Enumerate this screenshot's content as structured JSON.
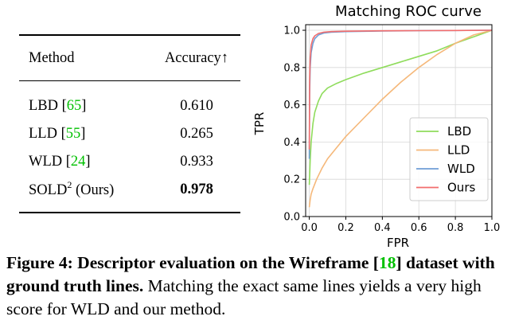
{
  "table": {
    "headers": [
      "Method",
      "Accuracy↑"
    ],
    "rows": [
      {
        "method": "LBD",
        "ref": "65",
        "sup": "",
        "suffix": "",
        "accuracy": "0.610",
        "bold": false
      },
      {
        "method": "LLD",
        "ref": "55",
        "sup": "",
        "suffix": "",
        "accuracy": "0.265",
        "bold": false
      },
      {
        "method": "WLD",
        "ref": "24",
        "sup": "",
        "suffix": "",
        "accuracy": "0.933",
        "bold": false
      },
      {
        "method": "SOLD",
        "ref": "",
        "sup": "2",
        "suffix": " (Ours)",
        "accuracy": "0.978",
        "bold": true
      }
    ]
  },
  "chart_data": {
    "type": "line",
    "title": "Matching ROC curve",
    "xlabel": "FPR",
    "ylabel": "TPR",
    "xlim": [
      -0.02,
      1.0
    ],
    "ylim": [
      0.0,
      1.03
    ],
    "xticks": [
      "0.0",
      "0.2",
      "0.4",
      "0.6",
      "0.8",
      "1.0"
    ],
    "yticks": [
      "0.0",
      "0.2",
      "0.4",
      "0.6",
      "0.8",
      "1.0"
    ],
    "grid": true,
    "legend_position": "bottom-right",
    "series": [
      {
        "name": "LBD",
        "color": "#8fdc5c",
        "x": [
          0.0,
          0.005,
          0.01,
          0.02,
          0.03,
          0.05,
          0.07,
          0.1,
          0.15,
          0.2,
          0.3,
          0.4,
          0.5,
          0.6,
          0.7,
          0.8,
          0.9,
          1.0
        ],
        "y": [
          0.17,
          0.3,
          0.4,
          0.5,
          0.56,
          0.62,
          0.66,
          0.69,
          0.715,
          0.735,
          0.77,
          0.8,
          0.83,
          0.86,
          0.89,
          0.93,
          0.965,
          1.0
        ]
      },
      {
        "name": "LLD",
        "color": "#f5b87a",
        "x": [
          0.0,
          0.005,
          0.01,
          0.02,
          0.04,
          0.07,
          0.1,
          0.15,
          0.2,
          0.3,
          0.4,
          0.5,
          0.6,
          0.7,
          0.8,
          0.9,
          1.0
        ],
        "y": [
          0.05,
          0.09,
          0.12,
          0.15,
          0.2,
          0.26,
          0.31,
          0.37,
          0.43,
          0.53,
          0.63,
          0.72,
          0.8,
          0.87,
          0.93,
          0.975,
          1.0
        ]
      },
      {
        "name": "WLD",
        "color": "#6f9ed6",
        "x": [
          0.0,
          0.002,
          0.005,
          0.01,
          0.02,
          0.03,
          0.05,
          0.08,
          0.12,
          0.2,
          0.4,
          0.6,
          0.8,
          1.0
        ],
        "y": [
          0.31,
          0.65,
          0.8,
          0.88,
          0.93,
          0.955,
          0.975,
          0.985,
          0.99,
          0.993,
          0.996,
          0.998,
          0.999,
          1.0
        ]
      },
      {
        "name": "Ours",
        "color": "#f26d6d",
        "x": [
          0.0,
          0.002,
          0.005,
          0.01,
          0.02,
          0.03,
          0.05,
          0.08,
          0.12,
          0.2,
          0.4,
          0.6,
          0.8,
          1.0
        ],
        "y": [
          0.36,
          0.72,
          0.85,
          0.92,
          0.955,
          0.97,
          0.983,
          0.99,
          0.993,
          0.995,
          0.997,
          0.998,
          0.999,
          1.0
        ]
      }
    ]
  },
  "caption": {
    "label": "Figure 4:",
    "bold_text": "Descriptor evaluation on the Wireframe [",
    "ref": "18",
    "bold_text2": "] dataset with ground truth lines.",
    "rest": " Matching the exact same lines yields a very high score for WLD and our method."
  }
}
